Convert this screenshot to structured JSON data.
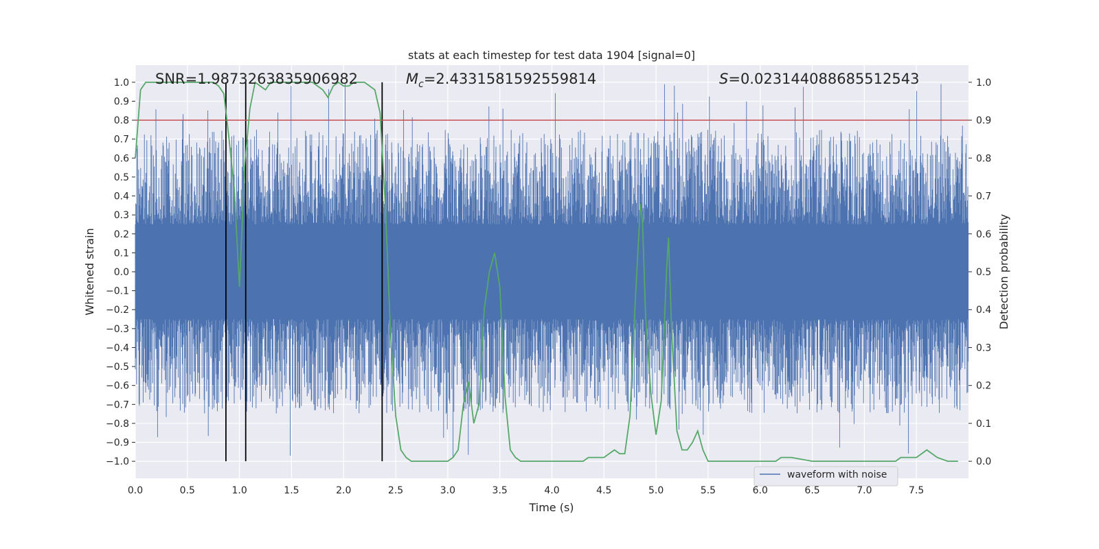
{
  "chart_data": {
    "type": "line",
    "title": "stats at each timestep for test data 1904 [signal=0]",
    "xlabel": "Time (s)",
    "ylabel_left": "Whitened strain",
    "ylabel_right": "Detection probability",
    "xlim": [
      0,
      8.0
    ],
    "ylim_left": [
      -1.09,
      1.09
    ],
    "ylim_right": [
      -0.045,
      1.045
    ],
    "xticks": [
      0.0,
      0.5,
      1.0,
      1.5,
      2.0,
      2.5,
      3.0,
      3.5,
      4.0,
      4.5,
      5.0,
      5.5,
      6.0,
      6.5,
      7.0,
      7.5
    ],
    "xtick_labels": [
      "0.0",
      "0.5",
      "1.0",
      "1.5",
      "2.0",
      "2.5",
      "3.0",
      "3.5",
      "4.0",
      "4.5",
      "5.0",
      "5.5",
      "6.0",
      "6.5",
      "7.0",
      "7.5"
    ],
    "yticks_left": [
      -1.0,
      -0.9,
      -0.8,
      -0.7,
      -0.6,
      -0.5,
      -0.4,
      -0.3,
      -0.2,
      -0.1,
      0.0,
      0.1,
      0.2,
      0.3,
      0.4,
      0.5,
      0.6,
      0.7,
      0.8,
      0.9,
      1.0
    ],
    "ytick_labels_left": [
      "−1.0",
      "−0.9",
      "−0.8",
      "−0.7",
      "−0.6",
      "−0.5",
      "−0.4",
      "−0.3",
      "−0.2",
      "−0.1",
      "0.0",
      "0.1",
      "0.2",
      "0.3",
      "0.4",
      "0.5",
      "0.6",
      "0.7",
      "0.8",
      "0.9",
      "1.0"
    ],
    "yticks_right": [
      0.0,
      0.1,
      0.2,
      0.3,
      0.4,
      0.5,
      0.6,
      0.7,
      0.8,
      0.9,
      1.0
    ],
    "ytick_labels_right": [
      "0.0",
      "0.1",
      "0.2",
      "0.3",
      "0.4",
      "0.5",
      "0.6",
      "0.7",
      "0.8",
      "0.9",
      "1.0"
    ],
    "annotations": {
      "snr": "SNR=1.9873263835906982",
      "mc_symbol": "M",
      "mc_sub": "c",
      "mc_value": "=2.4331581592559814",
      "s_symbol": "S",
      "s_value": "=0.023144088685512543"
    },
    "threshold": {
      "value": 0.9,
      "axis": "right",
      "color": "#c44e52"
    },
    "vertical_lines": {
      "x": [
        0.87,
        1.06,
        2.37
      ],
      "ymin": -1.0,
      "ymax": 1.0,
      "color": "#000000"
    },
    "series": [
      {
        "name": "waveform with noise",
        "axis": "left",
        "color": "#4c72b0",
        "kind": "dense noise",
        "amplitude_typical": 0.45,
        "amplitude_max": 1.0
      },
      {
        "name": "detection probability",
        "axis": "right",
        "color": "#55a868",
        "x": [
          0.0,
          0.05,
          0.1,
          0.15,
          0.2,
          0.3,
          0.4,
          0.5,
          0.6,
          0.7,
          0.75,
          0.8,
          0.85,
          0.9,
          0.95,
          1.0,
          1.05,
          1.1,
          1.15,
          1.2,
          1.25,
          1.3,
          1.35,
          1.4,
          1.5,
          1.6,
          1.7,
          1.75,
          1.8,
          1.85,
          1.9,
          1.95,
          2.0,
          2.05,
          2.1,
          2.15,
          2.2,
          2.25,
          2.3,
          2.35,
          2.4,
          2.45,
          2.5,
          2.55,
          2.6,
          2.65,
          2.7,
          2.75,
          2.8,
          2.9,
          3.0,
          3.05,
          3.1,
          3.15,
          3.2,
          3.25,
          3.3,
          3.35,
          3.4,
          3.45,
          3.5,
          3.55,
          3.6,
          3.65,
          3.7,
          3.8,
          3.9,
          4.0,
          4.1,
          4.2,
          4.3,
          4.35,
          4.4,
          4.5,
          4.6,
          4.65,
          4.7,
          4.75,
          4.8,
          4.85,
          4.87,
          4.9,
          4.95,
          5.0,
          5.05,
          5.1,
          5.12,
          5.15,
          5.2,
          5.25,
          5.3,
          5.35,
          5.4,
          5.45,
          5.5,
          5.6,
          5.8,
          6.0,
          6.1,
          6.15,
          6.2,
          6.3,
          6.5,
          6.8,
          7.0,
          7.2,
          7.3,
          7.35,
          7.4,
          7.45,
          7.5,
          7.55,
          7.6,
          7.65,
          7.7,
          7.8,
          7.9
        ],
        "values": [
          0.8,
          0.98,
          1.0,
          1.0,
          1.0,
          1.0,
          1.0,
          1.0,
          1.0,
          1.0,
          1.0,
          0.99,
          0.97,
          0.85,
          0.72,
          0.46,
          0.78,
          0.93,
          1.0,
          0.99,
          0.98,
          1.0,
          1.0,
          1.0,
          1.0,
          1.0,
          1.0,
          0.99,
          0.98,
          0.96,
          0.99,
          1.0,
          0.99,
          0.99,
          1.0,
          1.0,
          1.0,
          0.99,
          0.98,
          0.92,
          0.68,
          0.34,
          0.12,
          0.03,
          0.01,
          0.0,
          0.0,
          0.0,
          0.0,
          0.0,
          0.0,
          0.01,
          0.03,
          0.15,
          0.21,
          0.1,
          0.15,
          0.4,
          0.5,
          0.55,
          0.46,
          0.17,
          0.03,
          0.01,
          0.0,
          0.0,
          0.0,
          0.0,
          0.0,
          0.0,
          0.0,
          0.01,
          0.01,
          0.01,
          0.03,
          0.02,
          0.02,
          0.12,
          0.42,
          0.68,
          0.63,
          0.38,
          0.18,
          0.07,
          0.16,
          0.5,
          0.59,
          0.34,
          0.08,
          0.03,
          0.03,
          0.05,
          0.08,
          0.03,
          0.0,
          0.0,
          0.0,
          0.0,
          0.0,
          0.0,
          0.01,
          0.01,
          0.0,
          0.0,
          0.0,
          0.0,
          0.0,
          0.01,
          0.01,
          0.01,
          0.01,
          0.02,
          0.03,
          0.02,
          0.01,
          0.0,
          0.0
        ]
      }
    ],
    "legend": {
      "label": "waveform with noise",
      "placement": "lower-right"
    },
    "grid": true
  },
  "colors": {
    "plot_background": "#eaeaf2",
    "grid": "#ffffff",
    "waveform": "#4c72b0",
    "probability": "#55a868",
    "threshold": "#c44e52",
    "vline": "#000000"
  }
}
